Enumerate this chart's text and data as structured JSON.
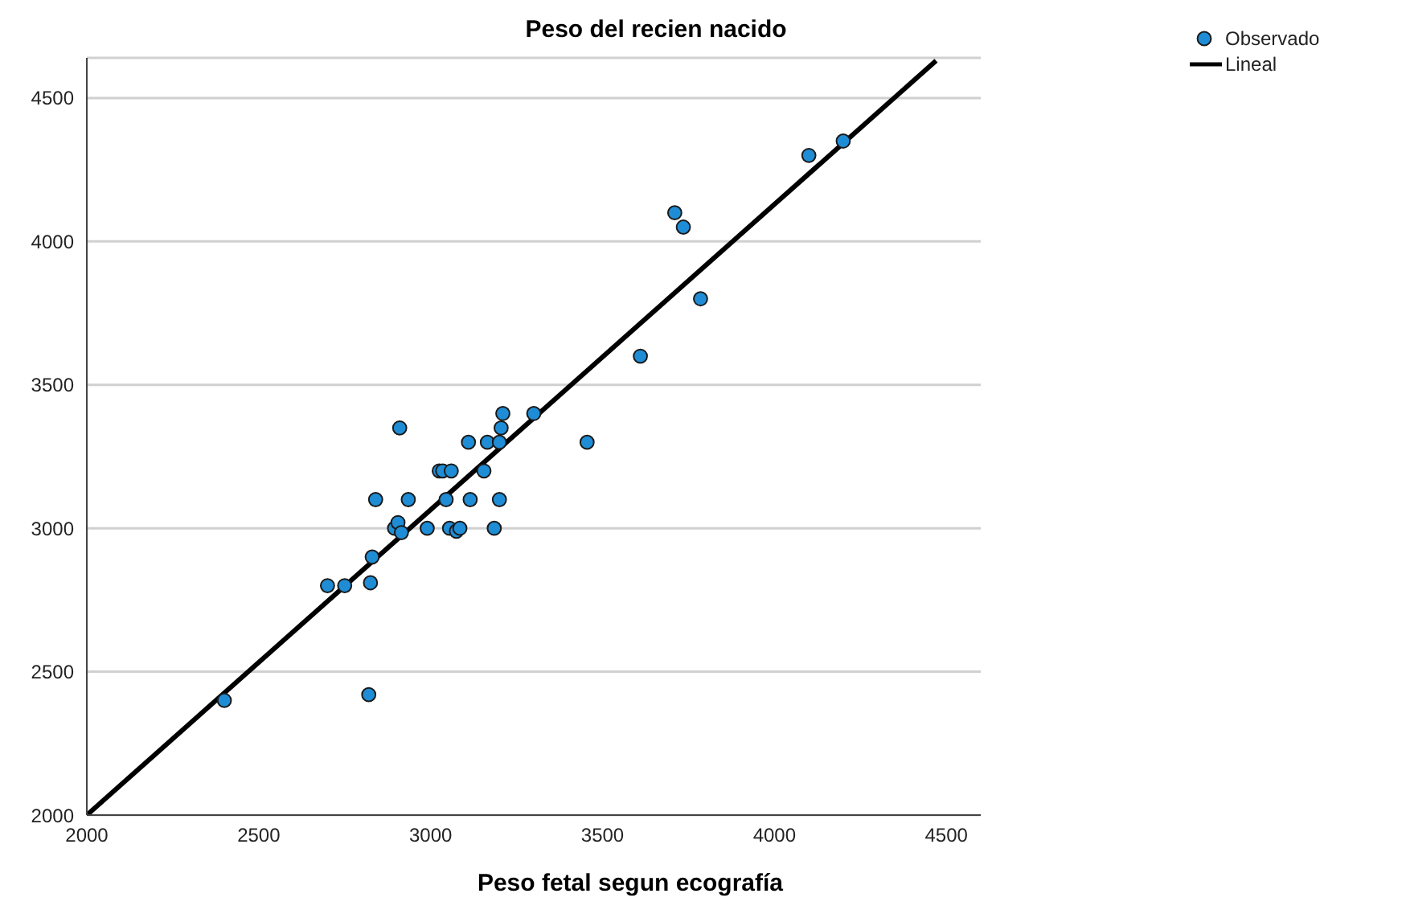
{
  "chart_data": {
    "type": "scatter",
    "title": "Peso del recien nacido",
    "xlabel": "Peso fetal segun ecografía",
    "xlim": [
      2000,
      4600
    ],
    "xticks": [
      2000,
      2500,
      3000,
      3500,
      4000,
      4500
    ],
    "ylim": [
      2000,
      4640
    ],
    "yticks": [
      2000,
      2500,
      3000,
      3500,
      4000,
      4500
    ],
    "grid": "y",
    "legend": "top right",
    "marker": "circle",
    "series": [
      {
        "name": "Observado",
        "color": "#1f8dd6",
        "x": [
          2400,
          2700,
          2750,
          2820,
          2825,
          2830,
          2840,
          2895,
          2905,
          2910,
          2915,
          2935,
          2990,
          3025,
          3035,
          3045,
          3055,
          3060,
          3075,
          3085,
          3110,
          3115,
          3155,
          3165,
          3185,
          3200,
          3200,
          3205,
          3210,
          3300,
          3455,
          3610,
          3710,
          3735,
          3785,
          4100,
          4200
        ],
        "values": [
          2400,
          2800,
          2800,
          2420,
          2810,
          2900,
          3100,
          3000,
          3020,
          3350,
          2985,
          3100,
          3000,
          3200,
          3200,
          3100,
          3000,
          3200,
          2990,
          3000,
          3300,
          3100,
          3200,
          3300,
          3000,
          3100,
          3300,
          3350,
          3400,
          3400,
          3300,
          3600,
          4100,
          4050,
          3800,
          4300,
          4350
        ]
      },
      {
        "name": "Lineal",
        "type": "line",
        "color": "#000000",
        "marker": "none",
        "line_style": "solid",
        "x": [
          2000,
          4470
        ],
        "values": [
          2000,
          4630
        ]
      }
    ]
  }
}
